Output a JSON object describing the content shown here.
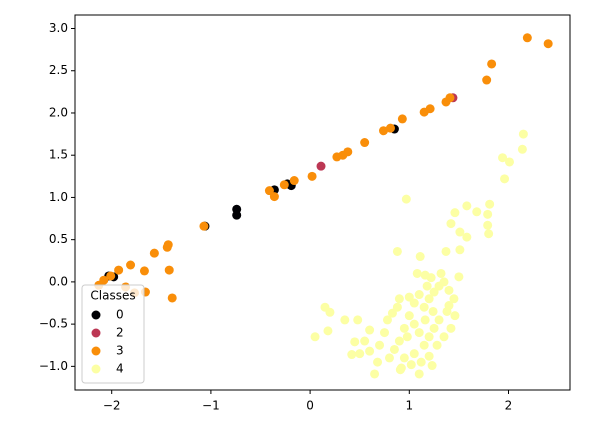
{
  "chart_data": {
    "type": "scatter",
    "xlim": [
      -2.37,
      2.62
    ],
    "ylim": [
      -1.28,
      3.16
    ],
    "xticks": [
      {
        "value": -2,
        "label": "−2"
      },
      {
        "value": -1,
        "label": "−1"
      },
      0,
      1,
      2
    ],
    "yticks": [
      {
        "value": -1,
        "label": "−1.0"
      },
      {
        "value": -0.5,
        "label": "−0.5"
      },
      {
        "value": 0,
        "label": "0.0"
      },
      0.5,
      {
        "value": 1,
        "label": "1.0"
      },
      1.5,
      {
        "value": 2,
        "label": "2.0"
      },
      2.5,
      {
        "value": 3,
        "label": "3.0"
      }
    ],
    "legend_title": "Classes",
    "legend_loc": "lower left",
    "series": [
      {
        "name": "0",
        "color": "#000004",
        "x": [
          -1.06,
          -0.74,
          -0.74,
          -0.36,
          -0.23,
          -0.19,
          0.85,
          -1.98,
          -2.03
        ],
        "y": [
          0.66,
          0.86,
          0.79,
          1.09,
          1.16,
          1.14,
          1.81,
          0.06,
          0.07
        ]
      },
      {
        "name": "2",
        "color": "#bc3754",
        "x": [
          0.11,
          1.44
        ],
        "y": [
          1.37,
          2.18
        ]
      },
      {
        "name": "3",
        "color": "#f98e09",
        "x": [
          2.19,
          2.4,
          1.83,
          1.78,
          1.41,
          1.37,
          1.21,
          1.15,
          0.93,
          0.81,
          0.74,
          0.55,
          0.38,
          0.33,
          0.27,
          0.02,
          -0.16,
          -0.26,
          -0.41,
          -0.36,
          -1.07,
          -1.43,
          -1.44,
          -1.57,
          -1.42,
          -1.39,
          -1.67,
          -1.66,
          -1.81,
          -1.77,
          -1.93,
          -2.01,
          -2.08,
          -2.13,
          -1.86
        ],
        "y": [
          2.89,
          2.82,
          2.58,
          2.39,
          2.18,
          2.13,
          2.05,
          2.01,
          1.93,
          1.82,
          1.79,
          1.65,
          1.54,
          1.5,
          1.48,
          1.25,
          1.2,
          1.15,
          1.08,
          1.01,
          0.66,
          0.44,
          0.41,
          0.34,
          0.14,
          -0.19,
          0.13,
          -0.12,
          0.2,
          -0.13,
          0.14,
          0.07,
          0.02,
          -0.04,
          -0.06
        ]
      },
      {
        "name": "4",
        "color": "#fcffa4",
        "x": [
          2.15,
          2.14,
          1.94,
          2.01,
          1.96,
          1.81,
          1.79,
          1.79,
          1.8,
          1.68,
          1.58,
          1.46,
          1.42,
          1.51,
          1.58,
          1.51,
          1.37,
          1.11,
          0.97,
          0.88,
          1.5,
          1.16,
          0.05,
          0.15,
          0.2,
          0.18,
          0.35,
          0.48,
          0.45,
          0.42,
          0.65,
          0.6,
          0.83,
          0.91,
          1.1,
          1.23,
          0.9,
          1.0,
          1.05,
          1.1,
          1.15,
          1.2,
          1.25,
          1.3,
          1.35,
          1.4,
          1.45,
          1.38,
          1.3,
          1.25,
          1.2,
          1.15,
          1.1,
          1.05,
          1.0,
          0.95,
          0.9,
          0.85,
          0.8,
          0.95,
          1.05,
          1.12,
          1.2,
          1.28,
          1.35,
          1.42,
          1.46,
          0.75,
          0.7,
          0.6,
          0.55,
          0.5,
          0.78,
          0.88,
          1.18,
          1.22,
          1.08,
          1.32,
          1.02,
          0.98,
          1.16,
          1.24,
          1.4,
          0.68,
          0.92
        ],
        "y": [
          1.75,
          1.57,
          1.47,
          1.42,
          1.22,
          0.92,
          0.8,
          0.67,
          0.57,
          0.83,
          0.9,
          0.82,
          0.69,
          0.59,
          0.53,
          0.38,
          0.36,
          0.3,
          0.98,
          0.36,
          0.06,
          0.08,
          -0.65,
          -0.3,
          -0.36,
          -0.58,
          -0.45,
          -0.45,
          -0.71,
          -0.86,
          -1.09,
          -0.57,
          -0.37,
          -1.04,
          -1.09,
          -0.99,
          -0.2,
          -0.18,
          -0.25,
          -0.15,
          -0.3,
          -0.2,
          -0.12,
          -0.05,
          0.0,
          -0.1,
          -0.2,
          -0.35,
          -0.45,
          -0.55,
          -0.65,
          -0.75,
          -0.6,
          -0.5,
          -0.4,
          -0.55,
          -0.7,
          -0.8,
          -0.9,
          -0.9,
          -0.85,
          -0.95,
          -0.88,
          -0.75,
          -0.65,
          -0.55,
          -0.4,
          -0.6,
          -0.75,
          -0.82,
          -0.7,
          -0.85,
          -0.45,
          -0.3,
          -0.05,
          0.05,
          0.1,
          0.1,
          -0.98,
          -0.65,
          -0.45,
          -0.35,
          -0.28,
          -0.95,
          -1.02
        ]
      }
    ]
  }
}
